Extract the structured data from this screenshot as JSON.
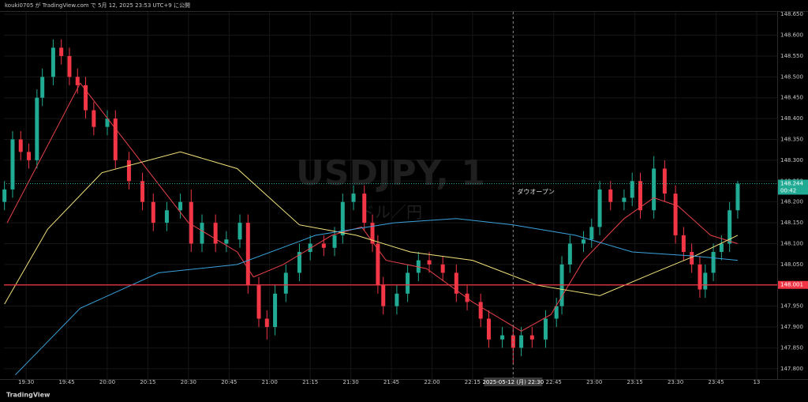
{
  "header": "kouki0705 が TradingView.com で 5月 12, 2025 23:53 UTC+9 に公開",
  "footer": "TradingView",
  "chart_data": {
    "type": "candlestick",
    "watermark": "USDJPY, 1",
    "watermark_sub": "ドル／円",
    "annotation": "ダウオープン",
    "up_color": "#22ab94",
    "down_color": "#f23645",
    "x": [
      -8,
      -5,
      -2,
      1,
      4,
      6,
      10,
      13,
      16,
      19,
      22,
      25,
      30,
      33,
      38,
      43,
      47,
      52,
      57,
      61,
      65,
      70,
      74,
      79,
      82,
      86,
      89,
      92,
      96,
      101,
      105,
      110,
      114,
      117,
      121,
      125,
      128,
      130,
      132,
      137,
      141,
      145,
      149,
      154,
      159,
      163,
      168,
      171,
      176,
      180,
      183,
      187,
      192,
      196,
      198,
      201,
      206,
      209,
      212,
      216,
      221,
      224,
      227,
      232,
      236,
      240,
      243,
      246,
      249,
      251,
      254,
      257,
      260,
      263
    ],
    "open": [
      148.2,
      148.23,
      148.35,
      148.32,
      148.3,
      148.45,
      148.5,
      148.57,
      148.55,
      148.5,
      148.48,
      148.42,
      148.38,
      148.4,
      148.3,
      148.25,
      148.2,
      148.15,
      148.18,
      148.2,
      148.1,
      148.15,
      148.1,
      148.11,
      148.15,
      148.0,
      147.92,
      147.9,
      147.98,
      148.03,
      148.08,
      148.1,
      148.09,
      148.12,
      148.2,
      148.22,
      148.15,
      148.1,
      148.0,
      147.95,
      147.98,
      148.03,
      148.06,
      148.05,
      148.03,
      147.98,
      147.96,
      147.92,
      147.87,
      147.88,
      147.85,
      147.88,
      147.87,
      147.92,
      147.95,
      148.05,
      148.1,
      148.11,
      148.14,
      148.23,
      148.2,
      148.21,
      148.25,
      148.18,
      148.28,
      148.22,
      148.12,
      148.08,
      148.05,
      147.99,
      148.03,
      148.08,
      148.1,
      148.18
    ],
    "high": [
      148.25,
      148.37,
      148.37,
      148.34,
      148.47,
      148.52,
      148.59,
      148.59,
      148.57,
      148.52,
      148.5,
      148.44,
      148.42,
      148.42,
      148.32,
      148.27,
      148.22,
      148.2,
      148.22,
      148.23,
      148.17,
      148.17,
      148.13,
      148.17,
      148.17,
      148.02,
      147.94,
      148.0,
      148.05,
      148.1,
      148.12,
      148.12,
      148.14,
      148.22,
      148.24,
      148.24,
      148.17,
      148.12,
      148.02,
      148.0,
      148.05,
      148.08,
      148.08,
      148.07,
      148.05,
      148.0,
      147.98,
      147.94,
      147.9,
      147.9,
      147.9,
      147.9,
      147.94,
      147.97,
      148.07,
      148.12,
      148.13,
      148.16,
      148.25,
      148.25,
      148.23,
      148.27,
      148.27,
      148.31,
      148.3,
      148.24,
      148.14,
      148.1,
      148.07,
      148.05,
      148.1,
      148.12,
      148.2,
      148.25
    ],
    "low": [
      148.18,
      148.21,
      148.3,
      148.28,
      148.28,
      148.43,
      148.48,
      148.53,
      148.48,
      148.46,
      148.4,
      148.36,
      148.36,
      148.28,
      148.23,
      148.18,
      148.13,
      148.13,
      148.16,
      148.08,
      148.08,
      148.08,
      148.08,
      148.09,
      147.98,
      147.9,
      147.87,
      147.88,
      147.96,
      148.01,
      148.06,
      148.07,
      148.07,
      148.1,
      148.18,
      148.13,
      148.08,
      147.98,
      147.93,
      147.93,
      147.96,
      148.01,
      148.03,
      148.01,
      147.96,
      147.94,
      147.9,
      147.85,
      147.85,
      147.81,
      147.83,
      147.85,
      147.85,
      147.9,
      147.93,
      148.03,
      148.08,
      148.09,
      148.12,
      148.18,
      148.18,
      148.19,
      148.16,
      148.16,
      148.2,
      148.1,
      148.06,
      148.03,
      147.97,
      147.97,
      148.01,
      148.06,
      148.08,
      148.16
    ],
    "close": [
      148.23,
      148.35,
      148.32,
      148.3,
      148.45,
      148.5,
      148.57,
      148.55,
      148.5,
      148.48,
      148.42,
      148.38,
      148.4,
      148.3,
      148.25,
      148.2,
      148.15,
      148.18,
      148.2,
      148.1,
      148.15,
      148.1,
      148.11,
      148.15,
      148.0,
      147.92,
      147.9,
      147.98,
      148.03,
      148.08,
      148.1,
      148.09,
      148.12,
      148.2,
      148.22,
      148.15,
      148.1,
      148.0,
      147.95,
      147.98,
      148.03,
      148.06,
      148.05,
      148.03,
      147.98,
      147.96,
      147.92,
      147.87,
      147.88,
      147.85,
      147.88,
      147.87,
      147.92,
      147.95,
      148.05,
      148.1,
      148.11,
      148.14,
      148.23,
      148.2,
      148.21,
      148.25,
      148.18,
      148.28,
      148.22,
      148.12,
      148.08,
      148.05,
      147.99,
      148.03,
      148.08,
      148.1,
      148.18,
      148.244
    ],
    "moving_averages": [
      {
        "color": "#e8414a",
        "x": [
          -7,
          20,
          60,
          78,
          84,
          95,
          113,
          124,
          133,
          148,
          165,
          183,
          194,
          206,
          221,
          232,
          241,
          253,
          263
        ],
        "values": [
          148.15,
          148.485,
          148.15,
          148.08,
          148.02,
          148.05,
          148.12,
          148.14,
          148.06,
          148.04,
          147.96,
          147.89,
          147.93,
          148.06,
          148.16,
          148.21,
          148.19,
          148.12,
          148.1
        ]
      },
      {
        "color": "#f3e27c",
        "x": [
          -8,
          8,
          28,
          57,
          78,
          101,
          122,
          142,
          165,
          189,
          212,
          232,
          247,
          263
        ],
        "values": [
          147.955,
          148.135,
          148.27,
          148.32,
          148.28,
          148.145,
          148.12,
          148.08,
          148.06,
          148.0,
          147.975,
          148.03,
          148.07,
          148.12
        ]
      },
      {
        "color": "#3aa3dc",
        "x": [
          -4,
          20,
          49,
          78,
          107,
          136,
          159,
          180,
          203,
          224,
          247,
          263
        ],
        "values": [
          147.785,
          147.945,
          148.03,
          148.05,
          148.12,
          148.15,
          148.16,
          148.145,
          148.12,
          148.08,
          148.07,
          148.06
        ]
      }
    ],
    "xlim": [
      -8.2,
      277.6
    ],
    "xticks": [
      {
        "value": 0,
        "label": "19:30"
      },
      {
        "value": 15,
        "label": "19:45"
      },
      {
        "value": 30,
        "label": "20:00"
      },
      {
        "value": 45,
        "label": "20:15"
      },
      {
        "value": 60,
        "label": "20:30"
      },
      {
        "value": 75,
        "label": "20:45"
      },
      {
        "value": 90,
        "label": "21:00"
      },
      {
        "value": 105,
        "label": "21:15"
      },
      {
        "value": 120,
        "label": "21:30"
      },
      {
        "value": 135,
        "label": "21:45"
      },
      {
        "value": 150,
        "label": "22:00"
      },
      {
        "value": 165,
        "label": "22:15"
      },
      {
        "value": 195,
        "label": "22:45"
      },
      {
        "value": 210,
        "label": "23:00"
      },
      {
        "value": 225,
        "label": "23:15"
      },
      {
        "value": 240,
        "label": "23:30"
      },
      {
        "value": 255,
        "label": "23:45"
      },
      {
        "value": 270,
        "label": "13"
      }
    ],
    "ylim": [
      147.775,
      148.656
    ],
    "yticks": [
      {
        "value": 147.8,
        "label": "147.800"
      },
      {
        "value": 147.85,
        "label": "147.850"
      },
      {
        "value": 147.9,
        "label": "147.900"
      },
      {
        "value": 147.95,
        "label": "147.950"
      },
      {
        "value": 148.0,
        "label": "148.000"
      },
      {
        "value": 148.05,
        "label": "148.050"
      },
      {
        "value": 148.1,
        "label": "148.100"
      },
      {
        "value": 148.15,
        "label": "148.150"
      },
      {
        "value": 148.2,
        "label": "148.200"
      },
      {
        "value": 148.25,
        "label": "148.250"
      },
      {
        "value": 148.3,
        "label": "148.300"
      },
      {
        "value": 148.35,
        "label": "148.350"
      },
      {
        "value": 148.4,
        "label": "148.400"
      },
      {
        "value": 148.45,
        "label": "148.450"
      },
      {
        "value": 148.5,
        "label": "148.500"
      },
      {
        "value": 148.55,
        "label": "148.550"
      },
      {
        "value": 148.6,
        "label": "148.600"
      },
      {
        "value": 148.65,
        "label": "148.650"
      }
    ],
    "crosshair": {
      "value": 180,
      "label": "2025-05-12 (月)  22:30"
    },
    "hline": {
      "value": 148.001,
      "label": "148.001",
      "color": "#f23645"
    },
    "last_price": {
      "value": 148.244,
      "label": "148.244",
      "countdown": "00:42",
      "color": "#22ab94"
    }
  }
}
